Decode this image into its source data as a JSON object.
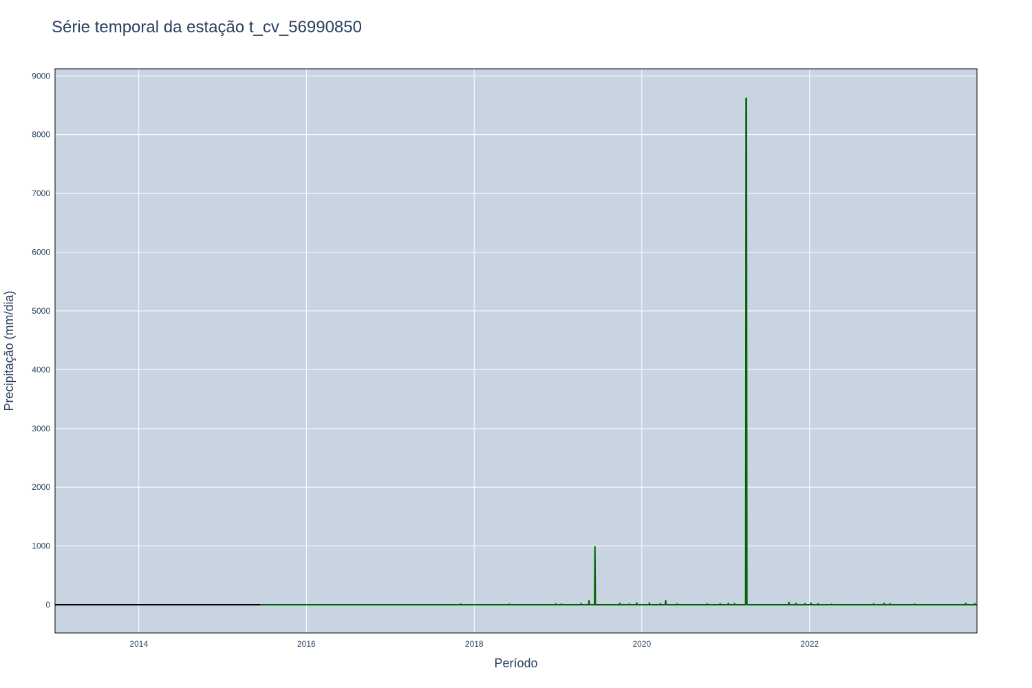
{
  "chart_data": {
    "type": "line",
    "title": "Série temporal da estação t_cv_56990850",
    "xlabel": "Período",
    "ylabel": "Precipitação (mm/dia)",
    "x_ticks": [
      "2014",
      "2016",
      "2018",
      "2020",
      "2022"
    ],
    "y_ticks": [
      "0",
      "1000",
      "2000",
      "3000",
      "4000",
      "5000",
      "6000",
      "7000",
      "8000",
      "9000"
    ],
    "xlim": [
      "2013-01-01",
      "2023-12-31"
    ],
    "ylim": [
      -480,
      9120
    ],
    "grid": true,
    "legend": "none",
    "colors": {
      "plot_background": "#c9d4e3",
      "grid": "#ffffff",
      "series_main": "#006400",
      "series_missing": "#000000",
      "text": "#2a3f5f"
    },
    "series": [
      {
        "style": "missing-flat",
        "color": "#000000",
        "points": [
          [
            "2013-01-01",
            0
          ],
          [
            "2015-06-15",
            0
          ]
        ]
      },
      {
        "style": "main",
        "color": "#006400",
        "points": [
          [
            "2015-06-15",
            0
          ],
          [
            "2017-11-01",
            0
          ],
          [
            "2017-11-03",
            12
          ],
          [
            "2017-11-05",
            0
          ],
          [
            "2018-06-01",
            0
          ],
          [
            "2018-06-03",
            10
          ],
          [
            "2018-06-05",
            0
          ],
          [
            "2018-12-20",
            0
          ],
          [
            "2018-12-22",
            15
          ],
          [
            "2018-12-24",
            0
          ],
          [
            "2019-01-15",
            0
          ],
          [
            "2019-01-17",
            12
          ],
          [
            "2019-01-19",
            0
          ],
          [
            "2019-04-10",
            0
          ],
          [
            "2019-04-12",
            20
          ],
          [
            "2019-04-14",
            0
          ],
          [
            "2019-05-14",
            0
          ],
          [
            "2019-05-16",
            70
          ],
          [
            "2019-05-18",
            0
          ],
          [
            "2019-06-09",
            0
          ],
          [
            "2019-06-11",
            985
          ],
          [
            "2019-06-13",
            0
          ],
          [
            "2019-09-25",
            0
          ],
          [
            "2019-09-27",
            25
          ],
          [
            "2019-09-29",
            0
          ],
          [
            "2019-11-05",
            0
          ],
          [
            "2019-11-07",
            15
          ],
          [
            "2019-11-09",
            0
          ],
          [
            "2019-12-08",
            0
          ],
          [
            "2019-12-10",
            30
          ],
          [
            "2019-12-12",
            0
          ],
          [
            "2020-02-01",
            0
          ],
          [
            "2020-02-03",
            30
          ],
          [
            "2020-02-05",
            0
          ],
          [
            "2020-03-20",
            0
          ],
          [
            "2020-03-22",
            20
          ],
          [
            "2020-03-24",
            0
          ],
          [
            "2020-04-12",
            0
          ],
          [
            "2020-04-14",
            70
          ],
          [
            "2020-04-16",
            0
          ],
          [
            "2020-06-01",
            0
          ],
          [
            "2020-06-03",
            15
          ],
          [
            "2020-06-05",
            0
          ],
          [
            "2020-10-10",
            0
          ],
          [
            "2020-10-12",
            15
          ],
          [
            "2020-10-14",
            0
          ],
          [
            "2020-12-05",
            0
          ],
          [
            "2020-12-07",
            20
          ],
          [
            "2020-12-09",
            0
          ],
          [
            "2021-01-10",
            0
          ],
          [
            "2021-01-12",
            25
          ],
          [
            "2021-01-14",
            0
          ],
          [
            "2021-02-06",
            0
          ],
          [
            "2021-02-08",
            20
          ],
          [
            "2021-02-10",
            0
          ],
          [
            "2021-03-28",
            0
          ],
          [
            "2021-03-30",
            8620
          ],
          [
            "2021-04-01",
            8620
          ],
          [
            "2021-04-03",
            0
          ],
          [
            "2021-10-01",
            0
          ],
          [
            "2021-10-03",
            40
          ],
          [
            "2021-10-05",
            0
          ],
          [
            "2021-11-01",
            0
          ],
          [
            "2021-11-03",
            25
          ],
          [
            "2021-11-05",
            0
          ],
          [
            "2021-12-10",
            0
          ],
          [
            "2021-12-12",
            20
          ],
          [
            "2021-12-14",
            0
          ],
          [
            "2022-01-05",
            0
          ],
          [
            "2022-01-07",
            30
          ],
          [
            "2022-01-09",
            0
          ],
          [
            "2022-02-05",
            0
          ],
          [
            "2022-02-07",
            20
          ],
          [
            "2022-02-09",
            0
          ],
          [
            "2022-04-05",
            0
          ],
          [
            "2022-04-07",
            10
          ],
          [
            "2022-04-09",
            0
          ],
          [
            "2022-10-05",
            0
          ],
          [
            "2022-10-07",
            15
          ],
          [
            "2022-10-09",
            0
          ],
          [
            "2022-11-20",
            0
          ],
          [
            "2022-11-22",
            25
          ],
          [
            "2022-11-24",
            0
          ],
          [
            "2022-12-15",
            0
          ],
          [
            "2022-12-17",
            20
          ],
          [
            "2022-12-19",
            0
          ],
          [
            "2023-04-01",
            0
          ],
          [
            "2023-04-03",
            12
          ],
          [
            "2023-04-05",
            0
          ],
          [
            "2023-11-10",
            0
          ],
          [
            "2023-11-12",
            25
          ],
          [
            "2023-11-14",
            0
          ],
          [
            "2023-12-20",
            0
          ],
          [
            "2023-12-22",
            20
          ],
          [
            "2023-12-24",
            0
          ],
          [
            "2023-12-31",
            0
          ]
        ]
      }
    ]
  }
}
